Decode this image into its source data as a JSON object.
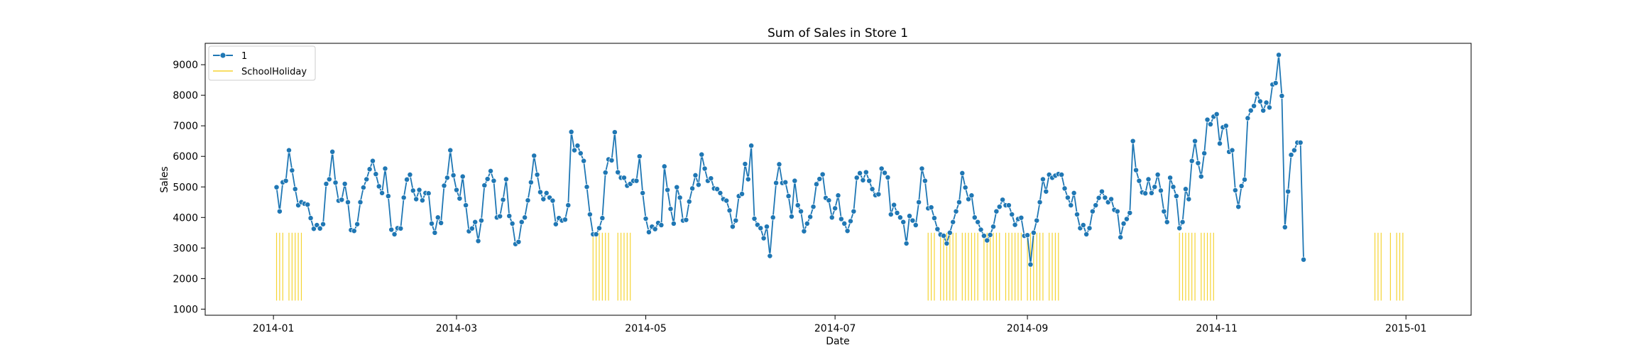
{
  "chart_data": {
    "type": "line",
    "title": "Sum of Sales in Store 1",
    "xlabel": "Date",
    "ylabel": "Sales",
    "x_ticks": [
      "2014-01",
      "2014-03",
      "2014-05",
      "2014-07",
      "2014-09",
      "2014-11",
      "2015-01"
    ],
    "y_ticks": [
      1000,
      2000,
      3000,
      4000,
      5000,
      6000,
      7000,
      8000,
      9000
    ],
    "xlim": [
      "2013-12-10",
      "2015-01-22"
    ],
    "ylim": [
      800,
      9700
    ],
    "grid": false,
    "legend_position": "top-left",
    "series": [
      {
        "name": "1",
        "kind": "line-markers",
        "color": "#1f77b4",
        "x_start": "2014-01-02",
        "step_days": 1,
        "values": [
          4990,
          4200,
          5150,
          5200,
          6200,
          5540,
          4930,
          4400,
          4500,
          4450,
          4420,
          3980,
          3630,
          3750,
          3640,
          3780,
          5100,
          5250,
          6150,
          5140,
          4550,
          4580,
          5100,
          4500,
          3590,
          3560,
          3780,
          4500,
          4980,
          5250,
          5580,
          5850,
          5420,
          5020,
          4800,
          5600,
          4700,
          3600,
          3450,
          3650,
          3640,
          4650,
          5240,
          5400,
          4880,
          4600,
          4900,
          4560,
          4800,
          4790,
          3800,
          3500,
          4000,
          3820,
          5040,
          5300,
          6200,
          5380,
          4900,
          4620,
          5340,
          4400,
          3550,
          3640,
          3850,
          3230,
          3900,
          5050,
          5260,
          5520,
          5200,
          4000,
          4040,
          4580,
          5250,
          4050,
          3800,
          3130,
          3200,
          3850,
          4000,
          4560,
          5150,
          6020,
          5400,
          4830,
          4600,
          4800,
          4650,
          4550,
          3780,
          3980,
          3900,
          3930,
          4400,
          6800,
          6200,
          6350,
          6100,
          5850,
          5000,
          4100,
          3450,
          3450,
          3650,
          3980,
          5470,
          5900,
          5870,
          6790,
          5480,
          5300,
          5300,
          5040,
          5100,
          5200,
          5200,
          6000,
          4800,
          3960,
          3520,
          3700,
          3620,
          3820,
          3750,
          5670,
          4900,
          4280,
          3800,
          4990,
          4650,
          3900,
          3920,
          4520,
          4950,
          5380,
          5070,
          6060,
          5600,
          5200,
          5280,
          4950,
          4930,
          4800,
          4600,
          4550,
          4230,
          3700,
          3900,
          4700,
          4770,
          5750,
          5250,
          6350,
          3960,
          3760,
          3650,
          3320,
          3700,
          2740,
          4000,
          5130,
          5740,
          5130,
          5150,
          4700,
          4030,
          5200,
          4400,
          4200,
          3550,
          3800,
          4020,
          4350,
          5090,
          5260,
          5410,
          4640,
          4560,
          4000,
          4300,
          4720,
          3950,
          3800,
          3560,
          3880,
          4200,
          5300,
          5450,
          5220,
          5480,
          5200,
          4930,
          4730,
          4760,
          5600,
          5460,
          5310,
          4100,
          4410,
          4150,
          4000,
          3850,
          3150,
          4050,
          3900,
          3750,
          4500,
          5600,
          5200,
          4300,
          4330,
          3980,
          3620,
          3440,
          3400,
          3150,
          3500,
          3850,
          4200,
          4500,
          5450,
          4980,
          4600,
          4720,
          4000,
          3850,
          3600,
          3400,
          3250,
          3430,
          3700,
          4200,
          4350,
          4580,
          4400,
          4400,
          4100,
          3760,
          3950,
          3990,
          3400,
          3420,
          2460,
          3500,
          3900,
          4500,
          5250,
          4850,
          5400,
          5300,
          5370,
          5420,
          5400,
          4950,
          4650,
          4400,
          4800,
          4100,
          3650,
          3750,
          3450,
          3650,
          4200,
          4400,
          4640,
          4850,
          4650,
          4500,
          4600,
          4250,
          4200,
          3350,
          3800,
          3950,
          4150,
          6500,
          5550,
          5200,
          4820,
          4790,
          5250,
          4800,
          5000,
          5400,
          4880,
          4200,
          3850,
          5300,
          5000,
          4700,
          3650,
          3850,
          4930,
          4600,
          5850,
          6500,
          5780,
          5340,
          6100,
          7200,
          7050,
          7300,
          7380,
          6420,
          6950,
          7000,
          6150,
          6200,
          4890,
          4350,
          5030,
          5240,
          7250,
          7500,
          7650,
          8050,
          7800,
          7500,
          7760,
          7600,
          8350,
          8400,
          9320,
          7980,
          3680,
          4850,
          6050,
          6200,
          6450,
          6450,
          2620
        ]
      },
      {
        "name": "SchoolHoliday",
        "kind": "holiday-bars",
        "color": "#f5d432",
        "y_from": 1280,
        "y_to": 3500,
        "dates": [
          "2014-01-02",
          "2014-01-03",
          "2014-01-04",
          "2014-01-06",
          "2014-01-07",
          "2014-01-08",
          "2014-01-09",
          "2014-01-10",
          "2014-04-14",
          "2014-04-15",
          "2014-04-16",
          "2014-04-17",
          "2014-04-18",
          "2014-04-19",
          "2014-04-22",
          "2014-04-23",
          "2014-04-24",
          "2014-04-25",
          "2014-04-26",
          "2014-07-31",
          "2014-08-01",
          "2014-08-02",
          "2014-08-04",
          "2014-08-05",
          "2014-08-06",
          "2014-08-07",
          "2014-08-08",
          "2014-08-09",
          "2014-08-11",
          "2014-08-12",
          "2014-08-13",
          "2014-08-14",
          "2014-08-15",
          "2014-08-16",
          "2014-08-18",
          "2014-08-19",
          "2014-08-20",
          "2014-08-21",
          "2014-08-22",
          "2014-08-23",
          "2014-08-25",
          "2014-08-26",
          "2014-08-27",
          "2014-08-28",
          "2014-08-29",
          "2014-08-30",
          "2014-09-01",
          "2014-09-02",
          "2014-09-03",
          "2014-09-04",
          "2014-09-05",
          "2014-09-06",
          "2014-09-08",
          "2014-09-09",
          "2014-09-10",
          "2014-09-11",
          "2014-10-20",
          "2014-10-21",
          "2014-10-22",
          "2014-10-23",
          "2014-10-24",
          "2014-10-25",
          "2014-10-27",
          "2014-10-28",
          "2014-10-29",
          "2014-10-30",
          "2014-10-31",
          "2014-12-22",
          "2014-12-23",
          "2014-12-24",
          "2014-12-27",
          "2014-12-29",
          "2014-12-30",
          "2014-12-31"
        ]
      }
    ]
  }
}
